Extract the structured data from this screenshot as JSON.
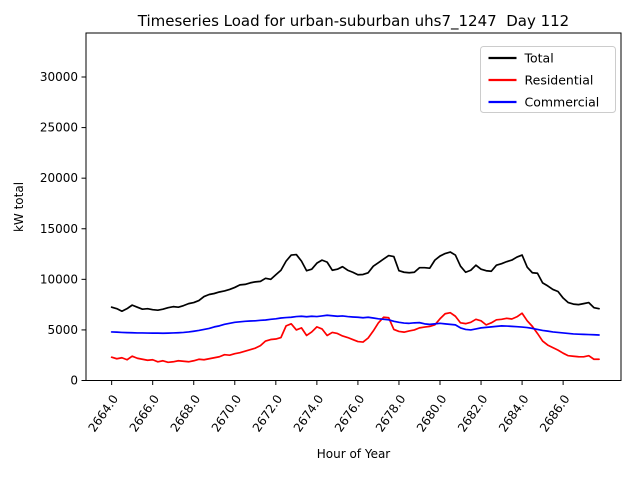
{
  "figure": {
    "title": "Timeseries Load for urban-suburban uhs7_1247  Day 112",
    "xlabel": "Hour of Year",
    "ylabel": "kW total"
  },
  "chart_data": {
    "type": "line",
    "title": "Timeseries Load for urban-suburban uhs7_1247  Day 112",
    "xlabel": "Hour of Year",
    "ylabel": "kW total",
    "xlim": [
      2662.75,
      2688.82
    ],
    "ylim": [
      0,
      34350
    ],
    "grid": false,
    "xticks": [
      2664,
      2666,
      2668,
      2670,
      2672,
      2674,
      2676,
      2678,
      2680,
      2682,
      2684,
      2686
    ],
    "xtick_labels": [
      "2664.0",
      "2666.0",
      "2668.0",
      "2670.0",
      "2672.0",
      "2674.0",
      "2676.0",
      "2678.0",
      "2680.0",
      "2682.0",
      "2684.0",
      "2686.0"
    ],
    "yticks": [
      0,
      5000,
      10000,
      15000,
      20000,
      25000,
      30000
    ],
    "ytick_labels": [
      "0",
      "5000",
      "10000",
      "15000",
      "20000",
      "25000",
      "30000"
    ],
    "legend": {
      "position": "upper right",
      "entries": [
        "Total",
        "Residential",
        "Commercial"
      ]
    },
    "x": [
      2664.0,
      2664.25,
      2664.5,
      2664.75,
      2665.0,
      2665.25,
      2665.5,
      2665.75,
      2666.0,
      2666.25,
      2666.5,
      2666.75,
      2667.0,
      2667.25,
      2667.5,
      2667.75,
      2668.0,
      2668.25,
      2668.5,
      2668.75,
      2669.0,
      2669.25,
      2669.5,
      2669.75,
      2670.0,
      2670.25,
      2670.5,
      2670.75,
      2671.0,
      2671.25,
      2671.5,
      2671.75,
      2672.0,
      2672.25,
      2672.5,
      2672.75,
      2673.0,
      2673.25,
      2673.5,
      2673.75,
      2674.0,
      2674.25,
      2674.5,
      2674.75,
      2675.0,
      2675.25,
      2675.5,
      2675.75,
      2676.0,
      2676.25,
      2676.5,
      2676.75,
      2677.0,
      2677.25,
      2677.5,
      2677.75,
      2678.0,
      2678.25,
      2678.5,
      2678.75,
      2679.0,
      2679.25,
      2679.5,
      2679.75,
      2680.0,
      2680.25,
      2680.5,
      2680.75,
      2681.0,
      2681.25,
      2681.5,
      2681.75,
      2682.0,
      2682.25,
      2682.5,
      2682.75,
      2683.0,
      2683.25,
      2683.5,
      2683.75,
      2684.0,
      2684.25,
      2684.5,
      2684.75,
      2685.0,
      2685.25,
      2685.5,
      2685.75,
      2686.0,
      2686.25,
      2686.5,
      2686.75,
      2687.0,
      2687.25,
      2687.5,
      2687.75
    ],
    "series": [
      {
        "name": "Total",
        "color": "#000000",
        "values": [
          7250,
          7100,
          6850,
          7100,
          7450,
          7250,
          7050,
          7100,
          7000,
          6950,
          7050,
          7200,
          7300,
          7250,
          7400,
          7600,
          7700,
          7900,
          8300,
          8500,
          8600,
          8750,
          8850,
          9000,
          9200,
          9450,
          9500,
          9650,
          9750,
          9800,
          10100,
          10000,
          10450,
          10900,
          11800,
          12400,
          12450,
          11800,
          10850,
          11000,
          11600,
          11900,
          11700,
          10900,
          11000,
          11250,
          10900,
          10700,
          10450,
          10480,
          10650,
          11300,
          11650,
          12000,
          12350,
          12250,
          10850,
          10700,
          10650,
          10700,
          11150,
          11150,
          11100,
          11900,
          12300,
          12550,
          12700,
          12400,
          11300,
          10700,
          10900,
          11400,
          11000,
          10850,
          10800,
          11400,
          11550,
          11750,
          11900,
          12200,
          12400,
          11200,
          10650,
          10600,
          9650,
          9350,
          9000,
          8800,
          8150,
          7700,
          7550,
          7500,
          7600,
          7700,
          7200,
          7100
        ]
      },
      {
        "name": "Residential",
        "color": "#ff0000",
        "values": [
          2300,
          2150,
          2250,
          2050,
          2400,
          2200,
          2100,
          2000,
          2050,
          1850,
          1950,
          1800,
          1850,
          1950,
          1900,
          1850,
          1950,
          2100,
          2050,
          2150,
          2250,
          2350,
          2550,
          2500,
          2650,
          2750,
          2900,
          3050,
          3200,
          3450,
          3900,
          4050,
          4100,
          4250,
          5400,
          5600,
          5000,
          5200,
          4450,
          4800,
          5300,
          5100,
          4450,
          4750,
          4650,
          4400,
          4250,
          4050,
          3850,
          3800,
          4200,
          4900,
          5700,
          6250,
          6200,
          5050,
          4850,
          4780,
          4900,
          5000,
          5200,
          5280,
          5350,
          5500,
          6100,
          6600,
          6700,
          6350,
          5700,
          5620,
          5750,
          6050,
          5900,
          5500,
          5700,
          6000,
          6050,
          6150,
          6080,
          6300,
          6650,
          5900,
          5350,
          4650,
          3900,
          3500,
          3250,
          3000,
          2700,
          2450,
          2400,
          2350,
          2340,
          2450,
          2100,
          2100
        ]
      },
      {
        "name": "Commercial",
        "color": "#0000ff",
        "values": [
          4800,
          4780,
          4750,
          4730,
          4720,
          4700,
          4700,
          4690,
          4680,
          4680,
          4670,
          4680,
          4700,
          4720,
          4750,
          4800,
          4870,
          4950,
          5050,
          5150,
          5300,
          5400,
          5550,
          5650,
          5750,
          5800,
          5850,
          5880,
          5900,
          5950,
          5980,
          6050,
          6100,
          6180,
          6220,
          6250,
          6320,
          6350,
          6300,
          6350,
          6320,
          6380,
          6450,
          6400,
          6350,
          6380,
          6320,
          6280,
          6250,
          6200,
          6250,
          6180,
          6100,
          6050,
          6000,
          5850,
          5750,
          5680,
          5650,
          5700,
          5720,
          5600,
          5550,
          5600,
          5650,
          5600,
          5550,
          5500,
          5200,
          5050,
          5000,
          5100,
          5200,
          5250,
          5300,
          5350,
          5400,
          5380,
          5350,
          5320,
          5280,
          5230,
          5150,
          5050,
          4950,
          4880,
          4800,
          4750,
          4700,
          4650,
          4600,
          4580,
          4560,
          4540,
          4520,
          4500
        ]
      }
    ]
  }
}
